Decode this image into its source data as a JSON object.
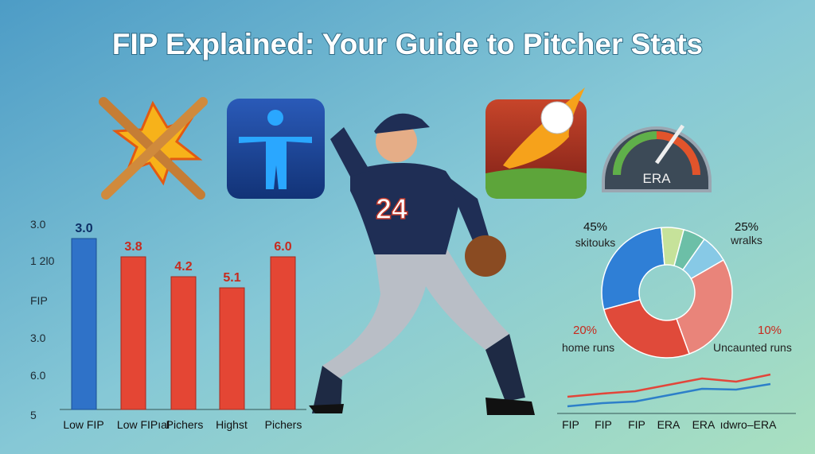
{
  "title": "FIP Explained: Your Guide to Pitcher Stats",
  "icons": {
    "gauge_label": "ERA",
    "jersey_number": "24"
  },
  "bar_panel": {
    "axis_labels": [
      "3.0",
      "1 2l0",
      "FIP",
      "3.0",
      "6.0",
      "5"
    ],
    "bars": [
      {
        "value_label": "3.0",
        "category": "Low FIP"
      },
      {
        "value_label": "3.8",
        "category": "Low FIPıal"
      },
      {
        "value_label": "4.2",
        "category": "Pichers"
      },
      {
        "value_label": "5.1",
        "category": "Highst"
      },
      {
        "value_label": "6.0",
        "category": "Pichers"
      }
    ]
  },
  "donut_panel": {
    "segments": [
      {
        "percent": "45%",
        "label": "skitouks"
      },
      {
        "percent": "25%",
        "label": "wralks"
      },
      {
        "percent": "20%",
        "label": "home runs"
      },
      {
        "percent": "10%",
        "label": "Uncaunted runs"
      }
    ]
  },
  "line_panel": {
    "categories": [
      "FIP",
      "FIP",
      "FIP",
      "ERA",
      "ERA",
      "ıdwro–ERA"
    ]
  }
}
